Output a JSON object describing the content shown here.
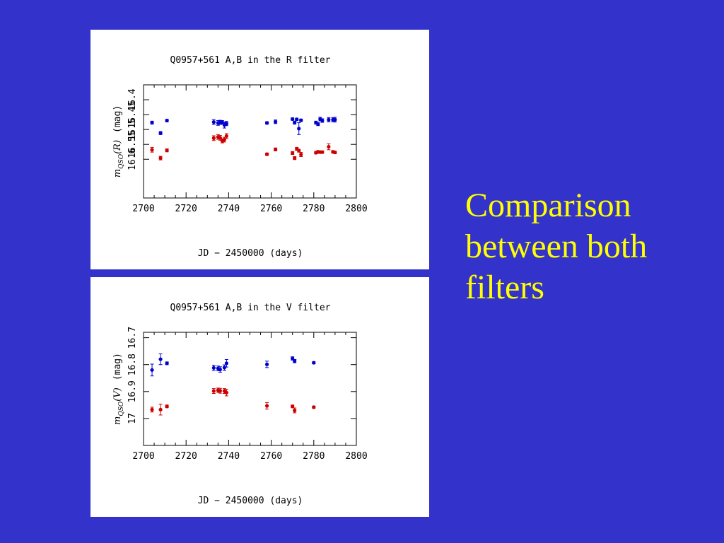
{
  "colors": {
    "background": "#3333cc",
    "caption": "#ffff00",
    "series_a": "#0000cc",
    "series_b": "#cc0000"
  },
  "caption_lines": [
    "Comparison",
    "between both",
    "filters"
  ],
  "chart_data": [
    {
      "type": "scatter",
      "title": "Q0957+561 A,B in the R filter",
      "xlabel": "JD − 2450000   (days)",
      "ylabel_parts": [
        "m",
        "QSO",
        "(R)",
        "(mag)"
      ],
      "xlim": [
        2700,
        2800
      ],
      "ylim": [
        16.73,
        16.35
      ],
      "xticks": [
        "2700",
        "2720",
        "2740",
        "2760",
        "2780",
        "2800"
      ],
      "yticks": [
        {
          "value": 16.4,
          "label": "16.4"
        },
        {
          "value": 16.45,
          "label": "16.45"
        },
        {
          "value": 16.5,
          "label": "16.5"
        },
        {
          "value": 16.55,
          "label": "16.55"
        },
        {
          "value": 16.6,
          "label": "16.6"
        }
      ],
      "series": [
        {
          "color": "#0000cc",
          "points": [
            {
              "x": 2704,
              "y": 16.477,
              "err": 0.005
            },
            {
              "x": 2708,
              "y": 16.512,
              "err": 0.005
            },
            {
              "x": 2711,
              "y": 16.47,
              "err": 0.004
            },
            {
              "x": 2733,
              "y": 16.475,
              "err": 0.008
            },
            {
              "x": 2735,
              "y": 16.478,
              "err": 0.008
            },
            {
              "x": 2736,
              "y": 16.476,
              "err": 0.007
            },
            {
              "x": 2737,
              "y": 16.476,
              "err": 0.006
            },
            {
              "x": 2738,
              "y": 16.485,
              "err": 0.01
            },
            {
              "x": 2739,
              "y": 16.48,
              "err": 0.007
            },
            {
              "x": 2758,
              "y": 16.478,
              "err": 0.004
            },
            {
              "x": 2762,
              "y": 16.474,
              "err": 0.006
            },
            {
              "x": 2770,
              "y": 16.465,
              "err": 0.004
            },
            {
              "x": 2771,
              "y": 16.477,
              "err": 0.005
            },
            {
              "x": 2772,
              "y": 16.466,
              "err": 0.004
            },
            {
              "x": 2773,
              "y": 16.497,
              "err": 0.02
            },
            {
              "x": 2774,
              "y": 16.469,
              "err": 0.004
            },
            {
              "x": 2781,
              "y": 16.477,
              "err": 0.005
            },
            {
              "x": 2782,
              "y": 16.482,
              "err": 0.005
            },
            {
              "x": 2783,
              "y": 16.465,
              "err": 0.006
            },
            {
              "x": 2784,
              "y": 16.47,
              "err": 0.006
            },
            {
              "x": 2787,
              "y": 16.467,
              "err": 0.007
            },
            {
              "x": 2789,
              "y": 16.467,
              "err": 0.007
            },
            {
              "x": 2790,
              "y": 16.467,
              "err": 0.008
            }
          ]
        },
        {
          "color": "#cc0000",
          "points": [
            {
              "x": 2704,
              "y": 16.568,
              "err": 0.008
            },
            {
              "x": 2708,
              "y": 16.596,
              "err": 0.006
            },
            {
              "x": 2711,
              "y": 16.57,
              "err": 0.005
            },
            {
              "x": 2733,
              "y": 16.529,
              "err": 0.008
            },
            {
              "x": 2735,
              "y": 16.525,
              "err": 0.008
            },
            {
              "x": 2736,
              "y": 16.528,
              "err": 0.008
            },
            {
              "x": 2737,
              "y": 16.538,
              "err": 0.007
            },
            {
              "x": 2738,
              "y": 16.534,
              "err": 0.008
            },
            {
              "x": 2739,
              "y": 16.522,
              "err": 0.008
            },
            {
              "x": 2758,
              "y": 16.583,
              "err": 0.004
            },
            {
              "x": 2762,
              "y": 16.567,
              "err": 0.005
            },
            {
              "x": 2770,
              "y": 16.579,
              "err": 0.005
            },
            {
              "x": 2771,
              "y": 16.596,
              "err": 0.005
            },
            {
              "x": 2772,
              "y": 16.565,
              "err": 0.005
            },
            {
              "x": 2773,
              "y": 16.571,
              "err": 0.005
            },
            {
              "x": 2774,
              "y": 16.584,
              "err": 0.007
            },
            {
              "x": 2781,
              "y": 16.578,
              "err": 0.004
            },
            {
              "x": 2782,
              "y": 16.575,
              "err": 0.004
            },
            {
              "x": 2783,
              "y": 16.576,
              "err": 0.004
            },
            {
              "x": 2784,
              "y": 16.576,
              "err": 0.004
            },
            {
              "x": 2787,
              "y": 16.558,
              "err": 0.01
            },
            {
              "x": 2789,
              "y": 16.575,
              "err": 0.004
            },
            {
              "x": 2790,
              "y": 16.577,
              "err": 0.004
            }
          ]
        }
      ]
    },
    {
      "type": "scatter",
      "title": "Q0957+561 A,B in the V filter",
      "xlabel": "JD − 2450000   (days)",
      "ylabel_parts": [
        "m",
        "QSO",
        "(V)",
        "(mag)"
      ],
      "xlim": [
        2700,
        2800
      ],
      "ylim": [
        17.1,
        16.68
      ],
      "xticks": [
        "2700",
        "2720",
        "2740",
        "2760",
        "2780",
        "2800"
      ],
      "yticks": [
        {
          "value": 16.7,
          "label": "16.7"
        },
        {
          "value": 16.8,
          "label": "16.8"
        },
        {
          "value": 16.9,
          "label": "16.9"
        },
        {
          "value": 17.0,
          "label": "17"
        }
      ],
      "series": [
        {
          "color": "#0000cc",
          "points": [
            {
              "x": 2704,
              "y": 16.82,
              "err": 0.022
            },
            {
              "x": 2708,
              "y": 16.78,
              "err": 0.02
            },
            {
              "x": 2711,
              "y": 16.795,
              "err": 0.005
            },
            {
              "x": 2733,
              "y": 16.812,
              "err": 0.01
            },
            {
              "x": 2735,
              "y": 16.814,
              "err": 0.009
            },
            {
              "x": 2736,
              "y": 16.818,
              "err": 0.01
            },
            {
              "x": 2738,
              "y": 16.811,
              "err": 0.01
            },
            {
              "x": 2739,
              "y": 16.795,
              "err": 0.014
            },
            {
              "x": 2758,
              "y": 16.799,
              "err": 0.012
            },
            {
              "x": 2770,
              "y": 16.777,
              "err": 0.006
            },
            {
              "x": 2771,
              "y": 16.787,
              "err": 0.006
            },
            {
              "x": 2780,
              "y": 16.793,
              "err": 0.004
            }
          ]
        },
        {
          "color": "#cc0000",
          "points": [
            {
              "x": 2704,
              "y": 16.967,
              "err": 0.009
            },
            {
              "x": 2708,
              "y": 16.967,
              "err": 0.02
            },
            {
              "x": 2711,
              "y": 16.955,
              "err": 0.005
            },
            {
              "x": 2733,
              "y": 16.898,
              "err": 0.009
            },
            {
              "x": 2735,
              "y": 16.895,
              "err": 0.008
            },
            {
              "x": 2736,
              "y": 16.897,
              "err": 0.009
            },
            {
              "x": 2738,
              "y": 16.898,
              "err": 0.009
            },
            {
              "x": 2739,
              "y": 16.904,
              "err": 0.012
            },
            {
              "x": 2758,
              "y": 16.953,
              "err": 0.012
            },
            {
              "x": 2770,
              "y": 16.955,
              "err": 0.005
            },
            {
              "x": 2771,
              "y": 16.97,
              "err": 0.009
            },
            {
              "x": 2780,
              "y": 16.958,
              "err": 0.004
            }
          ]
        }
      ]
    }
  ]
}
